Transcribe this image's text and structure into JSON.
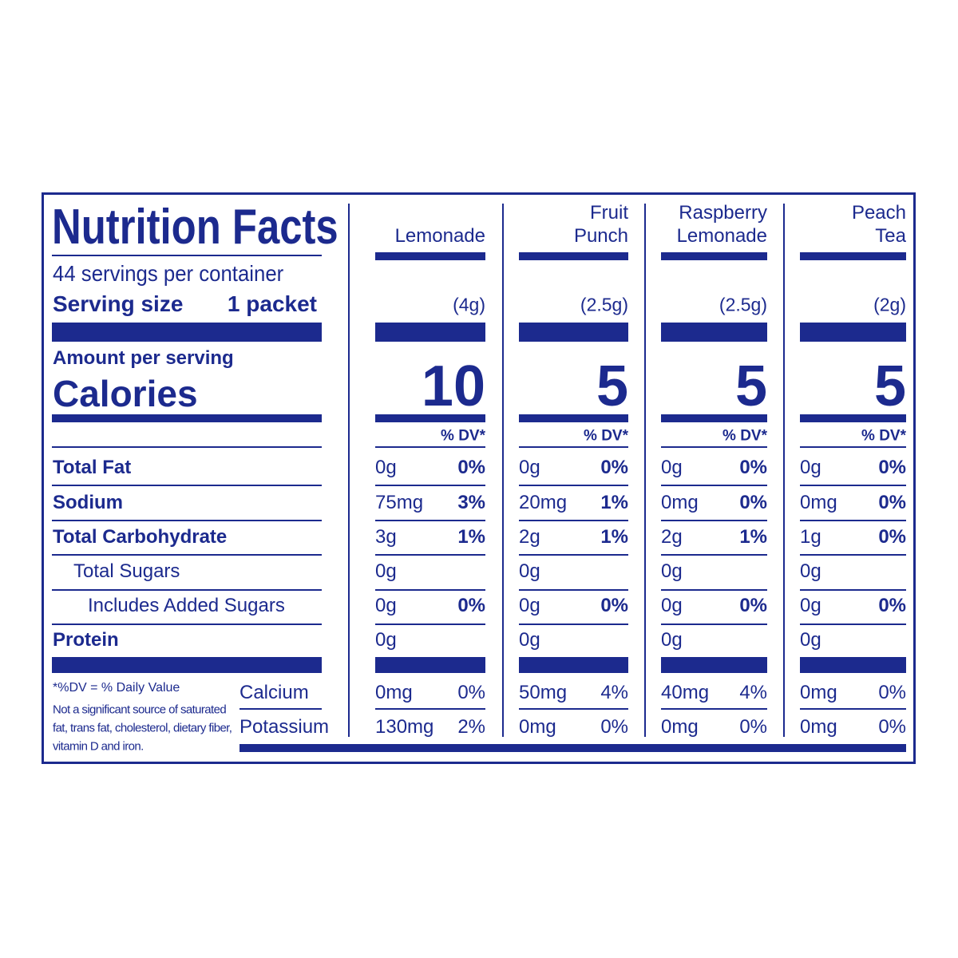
{
  "label": {
    "title": "Nutrition Facts",
    "servings": "44 servings per container",
    "serving_size_label": "Serving size",
    "serving_size_value": "1 packet",
    "amount_per_serving": "Amount per serving",
    "calories_label": "Calories",
    "dv_header": "% DV*",
    "nutrients": [
      "Total Fat",
      "Sodium",
      "Total Carbohydrate",
      "Total Sugars",
      "Includes Added Sugars",
      "Protein"
    ],
    "minerals": [
      "Calcium",
      "Potassium"
    ],
    "footnote_dv": "*%DV = % Daily Value",
    "footnote_note": "Not a significant source of saturated fat, trans fat, cholesterol, dietary fiber, vitamin D and iron.",
    "products": [
      {
        "name": [
          "Lemonade"
        ],
        "serving_weight": "(4g)",
        "calories": 10,
        "rows": [
          {
            "amount": "0g",
            "dv": "0%"
          },
          {
            "amount": "75mg",
            "dv": "3%"
          },
          {
            "amount": "3g",
            "dv": "1%"
          },
          {
            "amount": "0g"
          },
          {
            "amount": "0g",
            "dv": "0%"
          },
          {
            "amount": "0g"
          }
        ],
        "minerals": [
          {
            "amount": "0mg",
            "dv": "0%"
          },
          {
            "amount": "130mg",
            "dv": "2%"
          }
        ]
      },
      {
        "name": [
          "Fruit",
          "Punch"
        ],
        "serving_weight": "(2.5g)",
        "calories": 5,
        "rows": [
          {
            "amount": "0g",
            "dv": "0%"
          },
          {
            "amount": "20mg",
            "dv": "1%"
          },
          {
            "amount": "2g",
            "dv": "1%"
          },
          {
            "amount": "0g"
          },
          {
            "amount": "0g",
            "dv": "0%"
          },
          {
            "amount": "0g"
          }
        ],
        "minerals": [
          {
            "amount": "50mg",
            "dv": "4%"
          },
          {
            "amount": "0mg",
            "dv": "0%"
          }
        ]
      },
      {
        "name": [
          "Raspberry",
          "Lemonade"
        ],
        "serving_weight": "(2.5g)",
        "calories": 5,
        "rows": [
          {
            "amount": "0g",
            "dv": "0%"
          },
          {
            "amount": "0mg",
            "dv": "0%"
          },
          {
            "amount": "2g",
            "dv": "1%"
          },
          {
            "amount": "0g"
          },
          {
            "amount": "0g",
            "dv": "0%"
          },
          {
            "amount": "0g"
          }
        ],
        "minerals": [
          {
            "amount": "40mg",
            "dv": "4%"
          },
          {
            "amount": "0mg",
            "dv": "0%"
          }
        ]
      },
      {
        "name": [
          "Peach",
          "Tea"
        ],
        "serving_weight": "(2g)",
        "calories": 5,
        "rows": [
          {
            "amount": "0g",
            "dv": "0%"
          },
          {
            "amount": "0mg",
            "dv": "0%"
          },
          {
            "amount": "1g",
            "dv": "0%"
          },
          {
            "amount": "0g"
          },
          {
            "amount": "0g",
            "dv": "0%"
          },
          {
            "amount": "0g"
          }
        ],
        "minerals": [
          {
            "amount": "0mg",
            "dv": "0%"
          },
          {
            "amount": "0mg",
            "dv": "0%"
          }
        ]
      }
    ]
  }
}
